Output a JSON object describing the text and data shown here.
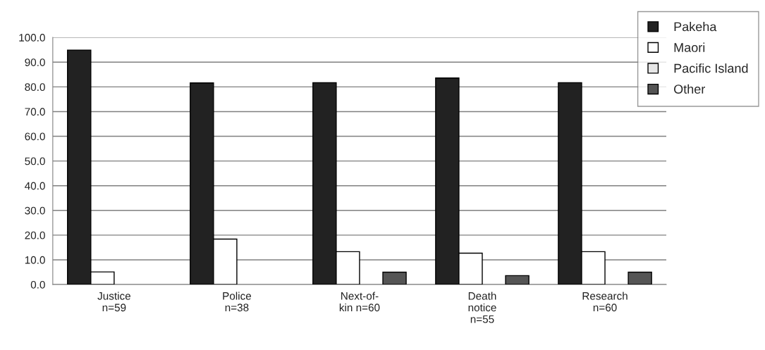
{
  "chart_data": {
    "type": "bar",
    "categories": [
      "Justice\nn=59",
      "Police\nn=38",
      "Next-of-\nkin n=60",
      "Death\nnotice\nn=55",
      "Research\nn=60"
    ],
    "series": [
      {
        "name": "Pakeha",
        "color": "#222222",
        "values": [
          94.9,
          81.6,
          81.7,
          83.6,
          81.7
        ]
      },
      {
        "name": "Maori",
        "color": "#ffffff",
        "values": [
          5.1,
          18.4,
          13.3,
          12.7,
          13.3
        ]
      },
      {
        "name": "Pacific Island",
        "color": "#e6e6e6",
        "values": [
          null,
          null,
          null,
          null,
          null
        ]
      },
      {
        "name": "Other",
        "color": "#555555",
        "values": [
          null,
          null,
          5.0,
          3.6,
          5.0
        ]
      }
    ],
    "ylim": [
      0,
      100
    ],
    "yticks": [
      {
        "value": 0,
        "label": "0.0"
      },
      {
        "value": 10,
        "label": "10.0"
      },
      {
        "value": 20,
        "label": "20.0"
      },
      {
        "value": 30,
        "label": "30.0"
      },
      {
        "value": 40,
        "label": "40.0"
      },
      {
        "value": 50,
        "label": "50.0"
      },
      {
        "value": 60,
        "label": "60.0"
      },
      {
        "value": 70,
        "label": "70.0"
      },
      {
        "value": 80,
        "label": "80.0"
      },
      {
        "value": 90,
        "label": "90.0"
      },
      {
        "value": 100,
        "label": "100.0"
      }
    ],
    "grid": "y",
    "legend": "top right"
  }
}
